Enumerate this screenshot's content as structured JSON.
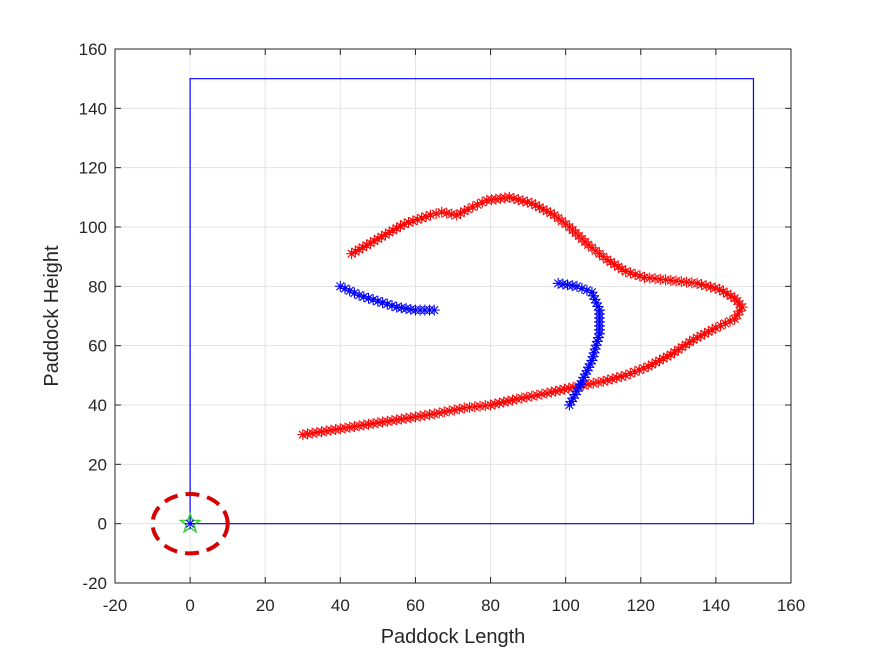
{
  "chart_data": {
    "type": "scatter",
    "title": "",
    "xlabel": "Paddock Length",
    "ylabel": "Paddock Height",
    "xlim": [
      -20,
      160
    ],
    "ylim": [
      -20,
      160
    ],
    "xticks": [
      -20,
      0,
      20,
      40,
      60,
      80,
      100,
      120,
      140,
      160
    ],
    "yticks": [
      -20,
      0,
      20,
      40,
      60,
      80,
      100,
      120,
      140,
      160
    ],
    "grid": true,
    "colors": {
      "boundary": "#0000ff",
      "red_path": "#ff0000",
      "blue_path": "#0000ff",
      "dashed_circle": "#d60000",
      "origin_star": "#3ccf3c",
      "axis": "#262626",
      "grid": "#e3e3e3"
    },
    "series": [
      {
        "kind": "line",
        "marker": "none",
        "color": "#0000ff",
        "points": [
          [
            0,
            0
          ],
          [
            0,
            150
          ],
          [
            150,
            150
          ],
          [
            150,
            0
          ],
          [
            0,
            0
          ]
        ]
      },
      {
        "kind": "dashed-circle",
        "color": "#d60000",
        "center": [
          0,
          0
        ],
        "radius": [
          10,
          10
        ]
      },
      {
        "kind": "marker",
        "marker": "pentagram",
        "color": "#3ccf3c",
        "points": [
          [
            0,
            0
          ]
        ]
      },
      {
        "kind": "marker",
        "marker": "asterisk",
        "color": "#0000ff",
        "points": [
          [
            0,
            0
          ]
        ]
      },
      {
        "kind": "path",
        "marker": "asterisk",
        "color": "#ff0000",
        "points": [
          [
            43,
            91
          ],
          [
            50,
            96
          ],
          [
            57,
            101
          ],
          [
            64,
            104
          ],
          [
            67,
            105
          ],
          [
            71,
            104
          ],
          [
            74,
            106
          ],
          [
            79,
            109
          ],
          [
            85,
            110
          ],
          [
            91,
            108
          ],
          [
            97,
            104
          ],
          [
            101,
            100
          ],
          [
            106,
            94
          ],
          [
            111,
            89
          ],
          [
            116,
            85
          ],
          [
            121,
            83
          ],
          [
            128,
            82
          ],
          [
            135,
            81
          ],
          [
            141,
            79
          ],
          [
            145,
            76
          ],
          [
            147,
            73
          ],
          [
            145,
            69
          ],
          [
            140,
            66
          ],
          [
            134,
            62
          ],
          [
            128,
            57
          ],
          [
            122,
            53
          ],
          [
            116,
            50
          ],
          [
            110,
            48
          ],
          [
            102,
            46
          ],
          [
            95,
            44
          ],
          [
            87,
            42
          ],
          [
            80,
            40
          ],
          [
            73,
            39
          ],
          [
            65,
            37
          ],
          [
            55,
            35
          ],
          [
            45,
            33
          ],
          [
            35,
            31
          ],
          [
            30,
            30
          ]
        ]
      },
      {
        "kind": "path",
        "marker": "asterisk",
        "color": "#0000ff",
        "points": [
          [
            40,
            80
          ],
          [
            45,
            77
          ],
          [
            50,
            75
          ],
          [
            55,
            73
          ],
          [
            60,
            72
          ],
          [
            65,
            72
          ]
        ]
      },
      {
        "kind": "path",
        "marker": "asterisk",
        "color": "#0000ff",
        "points": [
          [
            98,
            81
          ],
          [
            103,
            80
          ],
          [
            107,
            78
          ],
          [
            109,
            72
          ],
          [
            109,
            64
          ],
          [
            107,
            55
          ],
          [
            104,
            47
          ],
          [
            101,
            40
          ]
        ]
      }
    ]
  }
}
